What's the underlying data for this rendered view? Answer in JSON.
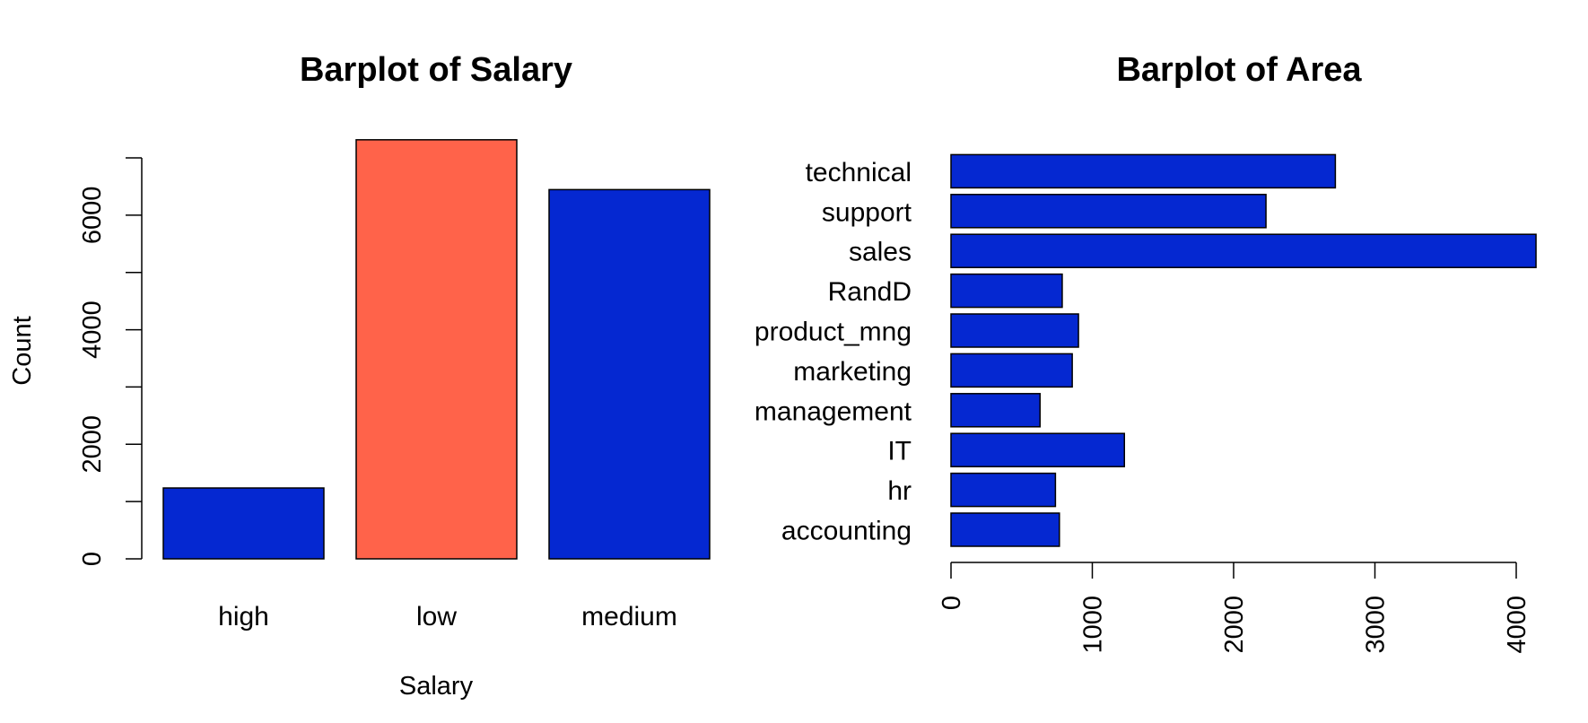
{
  "chart_data": [
    {
      "type": "bar",
      "orientation": "vertical",
      "title": "Barplot of Salary",
      "xlabel": "Salary",
      "ylabel": "Count",
      "categories": [
        "high",
        "low",
        "medium"
      ],
      "values": [
        1237,
        7316,
        6446
      ],
      "colors": [
        "#0528d1",
        "#ff634a",
        "#0528d1"
      ],
      "ylim": [
        0,
        7000
      ],
      "yticks": [
        "0",
        "2000",
        "4000",
        "6000"
      ],
      "ytick_values": [
        0,
        2000,
        4000,
        6000
      ],
      "yminor_values": [
        0,
        1000,
        2000,
        3000,
        4000,
        5000,
        6000,
        7000
      ],
      "grid": false
    },
    {
      "type": "bar",
      "orientation": "horizontal",
      "title": "Barplot of Area",
      "xlabel": "",
      "ylabel": "",
      "categories": [
        "accounting",
        "hr",
        "IT",
        "management",
        "marketing",
        "product_mng",
        "RandD",
        "sales",
        "support",
        "technical"
      ],
      "values": [
        767,
        739,
        1227,
        630,
        858,
        902,
        787,
        4140,
        2229,
        2720
      ],
      "colors": [
        "#0528d1"
      ],
      "xlim": [
        0,
        4000
      ],
      "xticks": [
        "0",
        "1000",
        "2000",
        "3000",
        "4000"
      ],
      "xtick_values": [
        0,
        1000,
        2000,
        3000,
        4000
      ],
      "grid": false
    }
  ]
}
